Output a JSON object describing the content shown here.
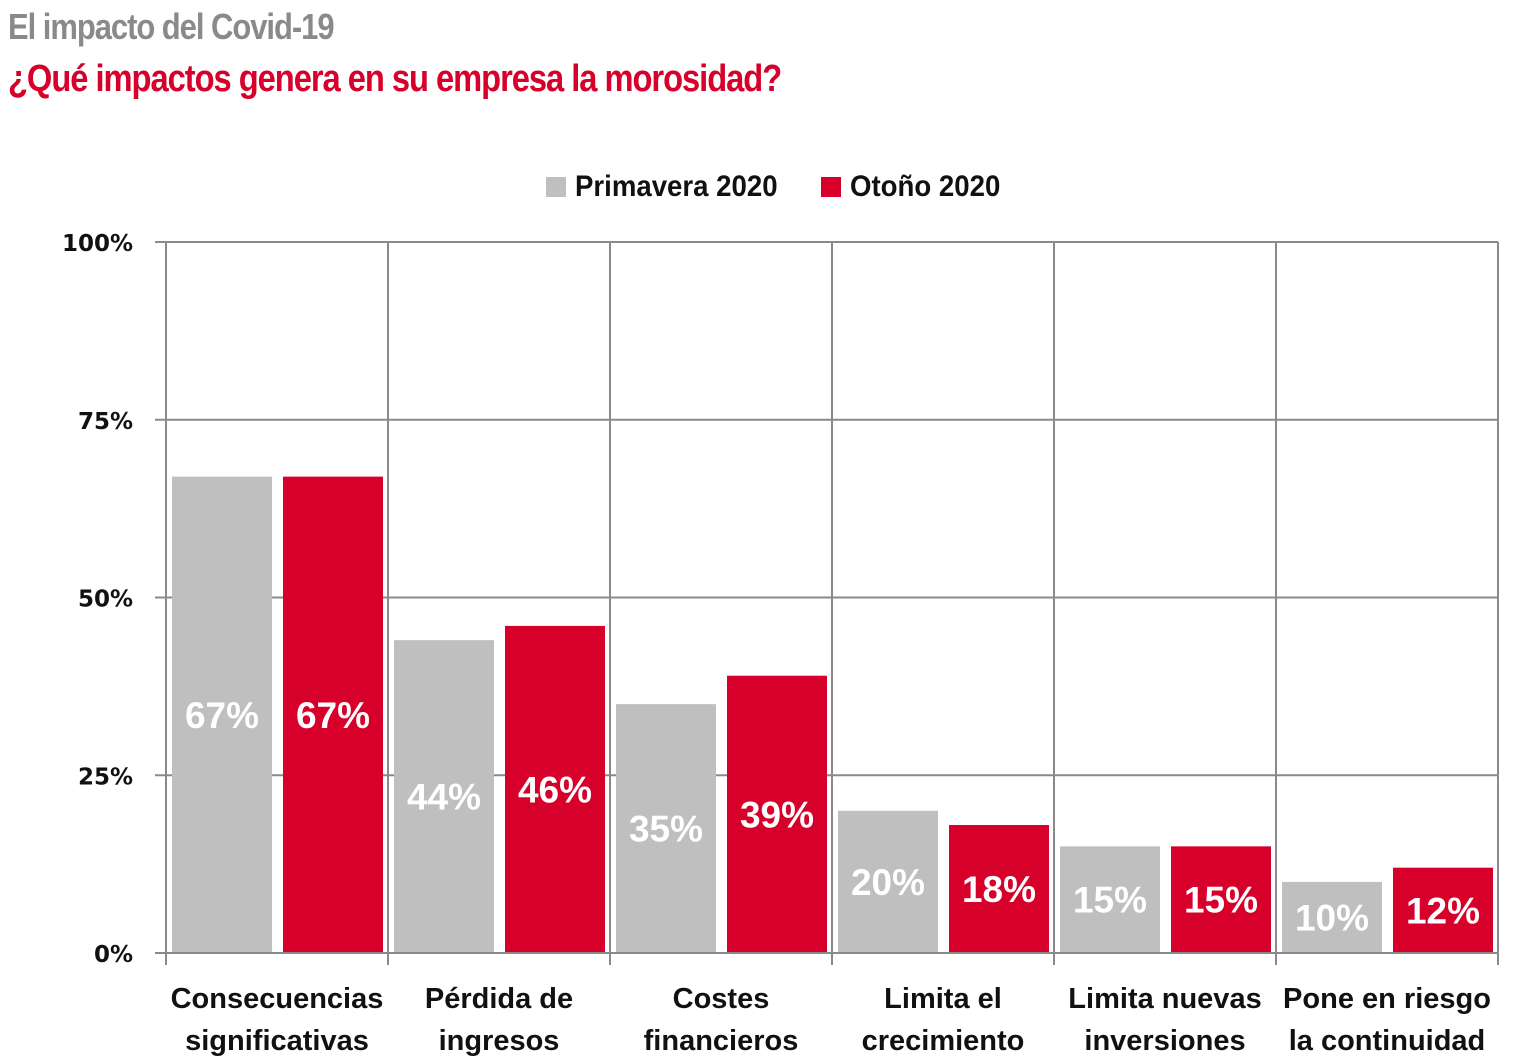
{
  "header": {
    "title": "El impacto del Covid-19",
    "subtitle": "¿Qué impactos genera en su empresa la morosidad?"
  },
  "colors": {
    "title": "#8a8a8a",
    "subtitle": "#d6002a",
    "primavera": "#bfbfbf",
    "otono": "#d6002a",
    "grid": "#8a8a8a"
  },
  "chart_data": {
    "type": "bar",
    "title": "El impacto del Covid-19",
    "subtitle": "¿Qué impactos genera en su empresa la morosidad?",
    "xlabel": "",
    "ylabel": "",
    "ylim": [
      0,
      100
    ],
    "yticks": [
      0,
      25,
      50,
      75,
      100
    ],
    "ytick_labels": [
      "0%",
      "25%",
      "50%",
      "75%",
      "100%"
    ],
    "grid": true,
    "legend_position": "top-center",
    "categories": [
      [
        "Consecuencias",
        "significativas"
      ],
      [
        "Pérdida de",
        "ingresos"
      ],
      [
        "Costes",
        "financieros"
      ],
      [
        "Limita el",
        "crecimiento"
      ],
      [
        "Limita nuevas",
        "inversiones"
      ],
      [
        "Pone en riesgo",
        "la continuidad"
      ]
    ],
    "series": [
      {
        "name": "Primavera 2020",
        "color": "#bfbfbf",
        "values": [
          67,
          44,
          35,
          20,
          15,
          10
        ],
        "labels": [
          "67%",
          "44%",
          "35%",
          "20%",
          "15%",
          "10%"
        ]
      },
      {
        "name": "Otoño 2020",
        "color": "#d6002a",
        "values": [
          67,
          46,
          39,
          18,
          15,
          12
        ],
        "labels": [
          "67%",
          "46%",
          "39%",
          "18%",
          "15%",
          "12%"
        ]
      }
    ]
  }
}
